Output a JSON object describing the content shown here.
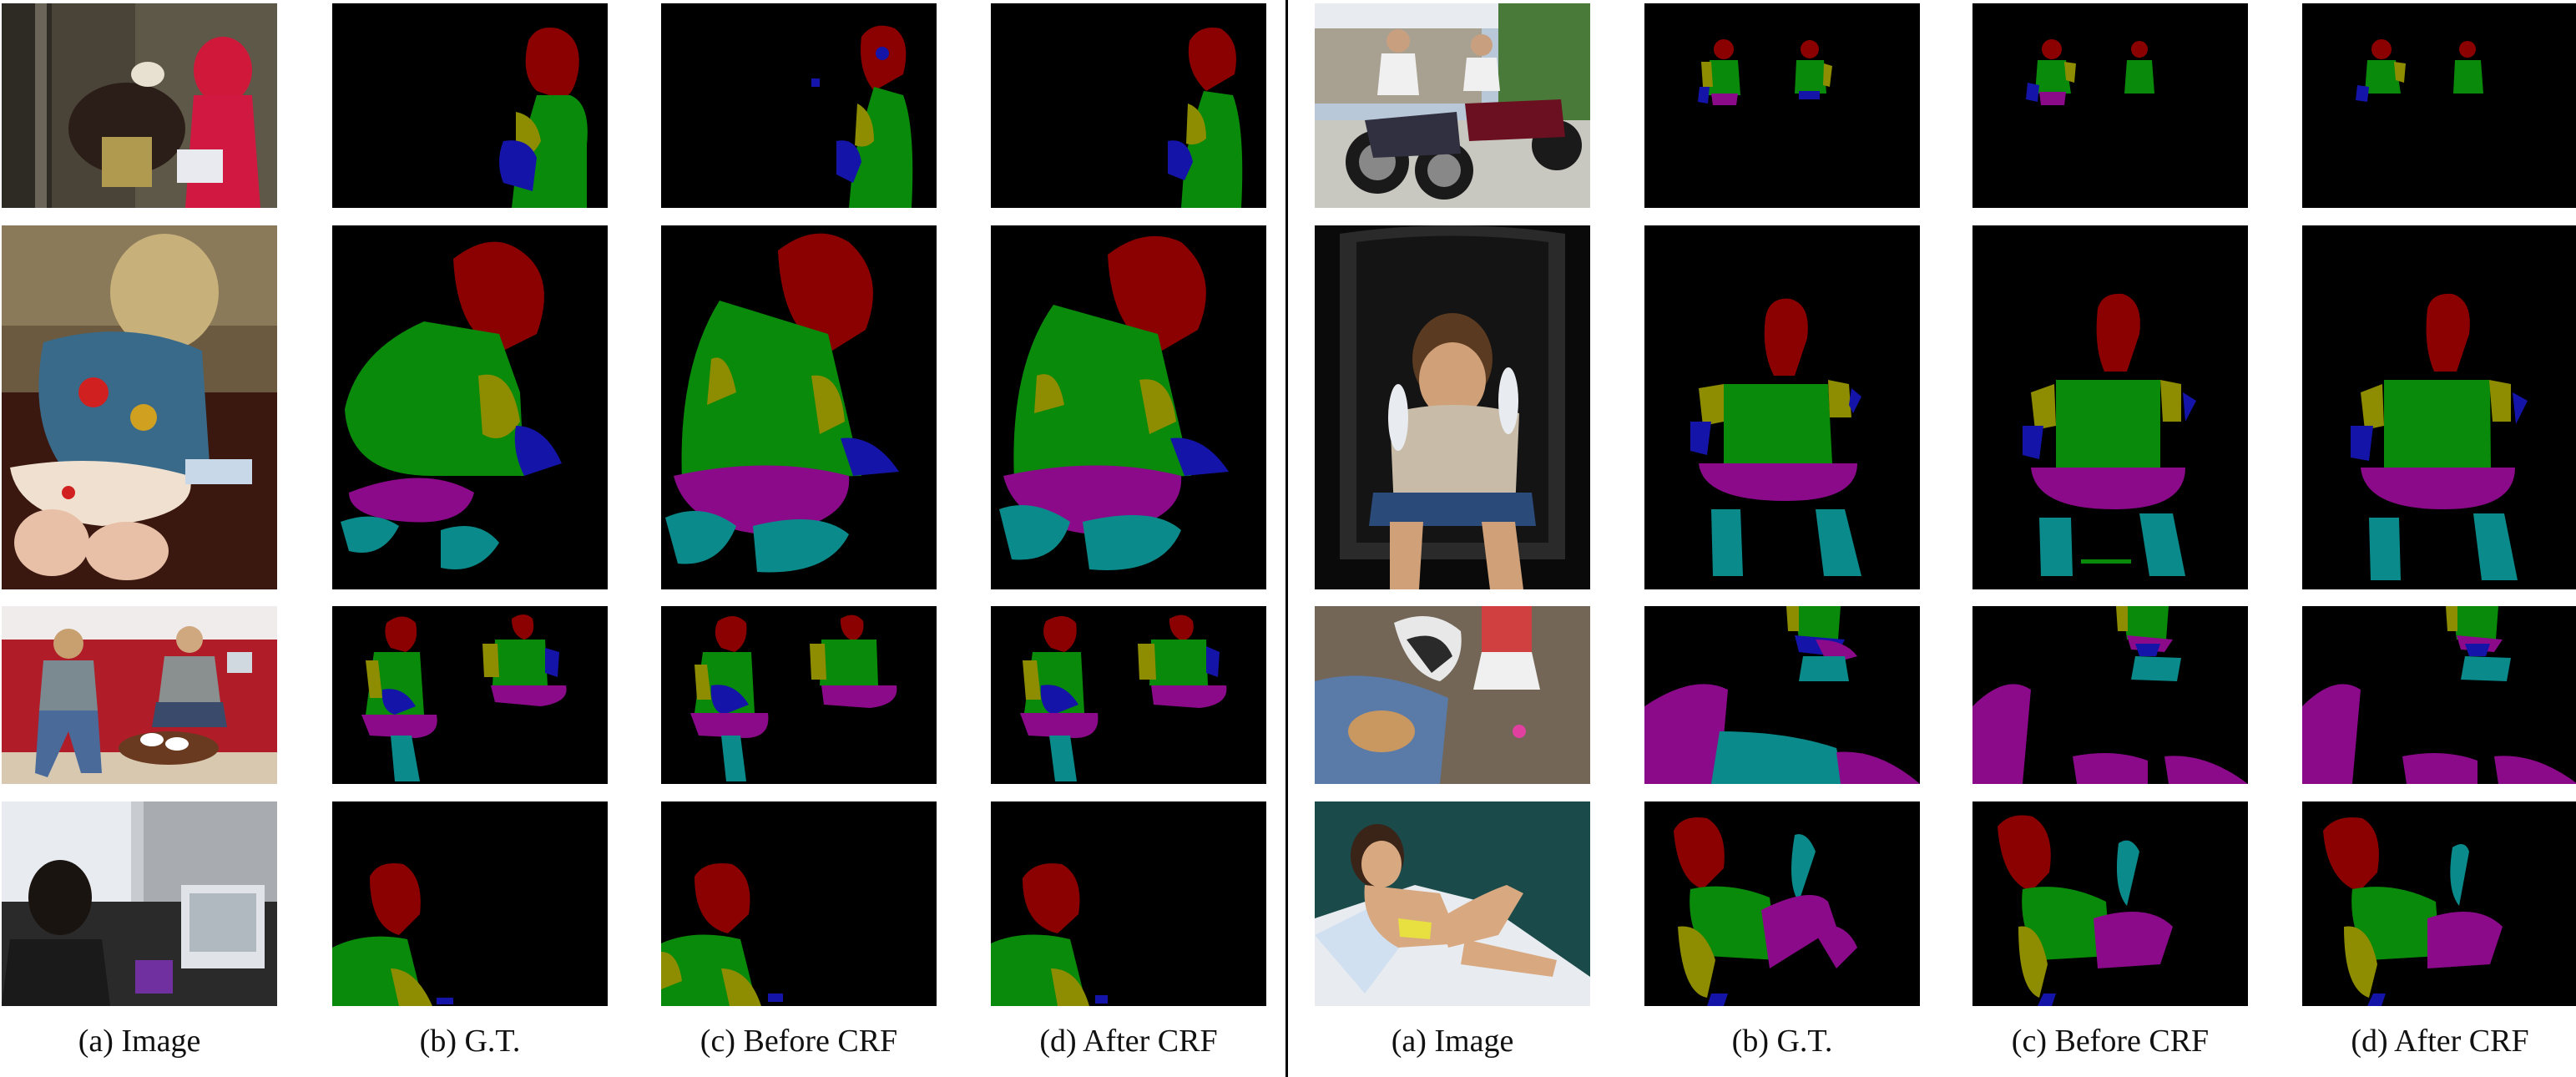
{
  "figure": {
    "captions_left": [
      "(a) Image",
      "(b) G.T.",
      "(c) Before CRF",
      "(d) After CRF"
    ],
    "captions_right": [
      "(a) Image",
      "(b) G.T.",
      "(c) Before CRF",
      "(d) After CRF"
    ]
  },
  "colors": {
    "background": "#000000",
    "head": "#8b0000",
    "torso": "#0a8a0a",
    "upper_arm": "#8e8c00",
    "lower_arm": "#1414a8",
    "upper_leg": "#8a0a8a",
    "lower_leg": "#0a8a8a"
  }
}
